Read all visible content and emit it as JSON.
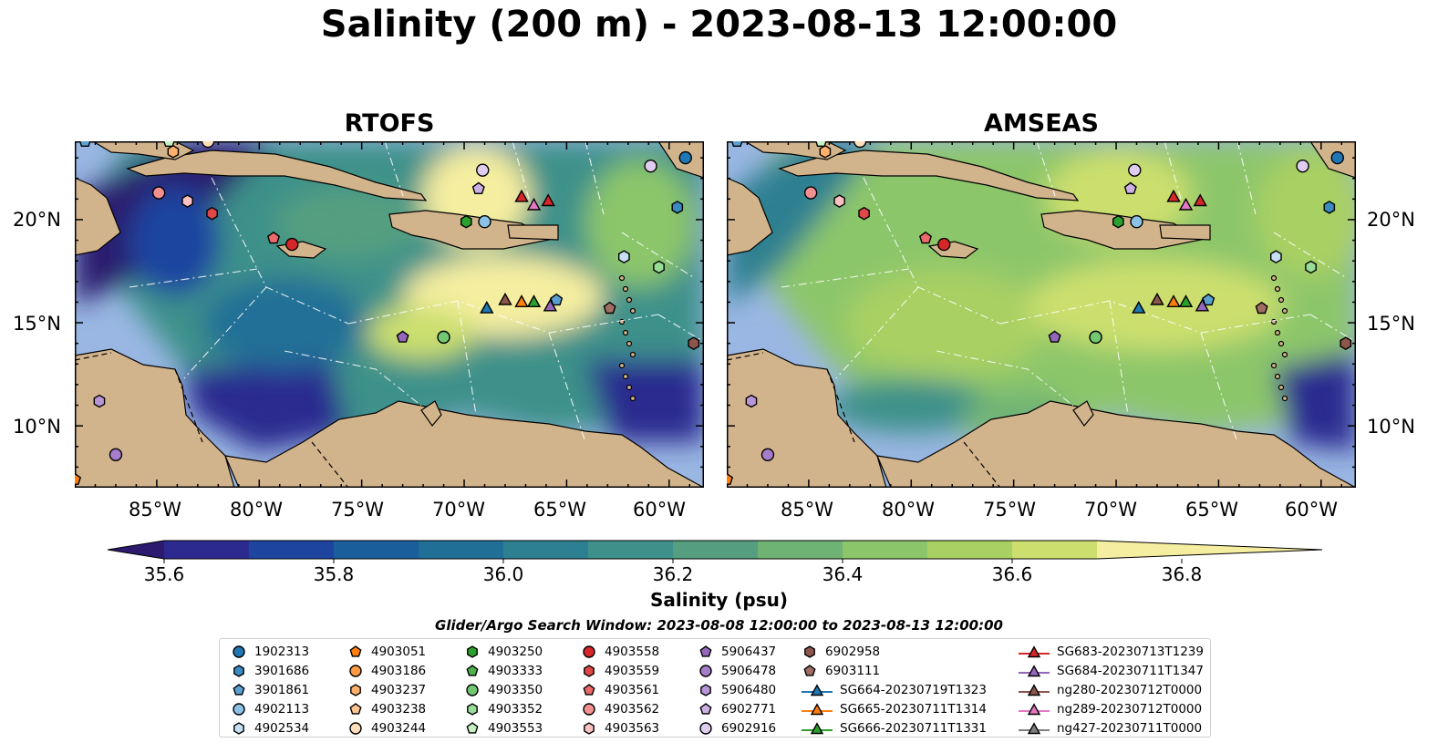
{
  "title": "Salinity (200 m) - 2023-08-13 12:00:00",
  "panels": [
    {
      "name": "RTOFS",
      "variant": "rtofs"
    },
    {
      "name": "AMSEAS",
      "variant": "amseas"
    }
  ],
  "lat_ticks": [
    "20°N",
    "15°N",
    "10°N"
  ],
  "lon_ticks": [
    "85°W",
    "80°W",
    "75°W",
    "70°W",
    "65°W",
    "60°W"
  ],
  "map_extent": {
    "lon_min": -89,
    "lon_max": -58.3,
    "lat_min": 7,
    "lat_max": 23.8
  },
  "colorbar": {
    "label": "Salinity (psu)",
    "ticks": [
      "35.6",
      "35.8",
      "36.0",
      "36.2",
      "36.4",
      "36.6",
      "36.8"
    ],
    "range": [
      35.5,
      36.9
    ],
    "step": 0.1,
    "colors": [
      "#2b1a6e",
      "#2c2a8f",
      "#1d45a0",
      "#1b5e9c",
      "#206f97",
      "#2d8091",
      "#3e918a",
      "#559f80",
      "#6fb374",
      "#8cc66a",
      "#a9d063",
      "#ccdf6e",
      "#f5eea0"
    ],
    "extend": "both"
  },
  "legend_title": "Glider/Argo Search Window: 2023-08-08 12:00:00 to 2023-08-13 12:00:00",
  "legend_columns": [
    [
      {
        "label": "1902313",
        "marker": "circle",
        "color": "#1f77b4"
      },
      {
        "label": "3901686",
        "marker": "hexagon",
        "color": "#3b8bc2"
      },
      {
        "label": "3901861",
        "marker": "pentagon",
        "color": "#5aa0d0"
      },
      {
        "label": "4902113",
        "marker": "circle",
        "color": "#8cc1e6"
      },
      {
        "label": "4902534",
        "marker": "hexagon",
        "color": "#c6e0f3"
      }
    ],
    [
      {
        "label": "4903051",
        "marker": "pentagon",
        "color": "#ff7f0e"
      },
      {
        "label": "4903186",
        "marker": "circle",
        "color": "#ff9a45"
      },
      {
        "label": "4903237",
        "marker": "hexagon",
        "color": "#ffb06a"
      },
      {
        "label": "4903238",
        "marker": "pentagon",
        "color": "#ffc690"
      },
      {
        "label": "4903244",
        "marker": "circle",
        "color": "#ffdfba"
      }
    ],
    [
      {
        "label": "4903250",
        "marker": "hexagon",
        "color": "#2ca02c"
      },
      {
        "label": "4903333",
        "marker": "pentagon",
        "color": "#4cb34c"
      },
      {
        "label": "4903350",
        "marker": "circle",
        "color": "#72c872"
      },
      {
        "label": "4903352",
        "marker": "hexagon",
        "color": "#98dc98"
      },
      {
        "label": "4903553",
        "marker": "pentagon",
        "color": "#c4f0c4"
      }
    ],
    [
      {
        "label": "4903558",
        "marker": "circle",
        "color": "#d62728"
      },
      {
        "label": "4903559",
        "marker": "hexagon",
        "color": "#e04848"
      },
      {
        "label": "4903561",
        "marker": "pentagon",
        "color": "#ea6a6a"
      },
      {
        "label": "4903562",
        "marker": "circle",
        "color": "#f39191"
      },
      {
        "label": "4903563",
        "marker": "hexagon",
        "color": "#fbc0c0"
      }
    ],
    [
      {
        "label": "5906437",
        "marker": "pentagon",
        "color": "#9467bd"
      },
      {
        "label": "5906478",
        "marker": "circle",
        "color": "#a57dca"
      },
      {
        "label": "5906480",
        "marker": "hexagon",
        "color": "#b795d6"
      },
      {
        "label": "6902771",
        "marker": "pentagon",
        "color": "#cab0e3"
      },
      {
        "label": "6902916",
        "marker": "circle",
        "color": "#dfcdf0"
      }
    ],
    [
      {
        "label": "6902958",
        "marker": "hexagon",
        "color": "#8c564b"
      },
      {
        "label": "6903111",
        "marker": "pentagon",
        "color": "#a06e63"
      },
      {
        "label": "SG664-20230719T1323",
        "marker": "triangle-line",
        "color": "#1f77b4"
      },
      {
        "label": "SG665-20230711T1314",
        "marker": "triangle-line",
        "color": "#ff7f0e"
      },
      {
        "label": "SG666-20230711T1331",
        "marker": "triangle-line",
        "color": "#2ca02c"
      }
    ],
    [
      {
        "label": "SG683-20230713T1239",
        "marker": "triangle-line",
        "color": "#d62728"
      },
      {
        "label": "SG684-20230711T1347",
        "marker": "triangle-line",
        "color": "#9467bd"
      },
      {
        "label": "ng280-20230712T0000",
        "marker": "triangle-line",
        "color": "#8c564b"
      },
      {
        "label": "ng289-20230712T0000",
        "marker": "triangle-line",
        "color": "#e377c2"
      },
      {
        "label": "ng427-20230711T0000",
        "marker": "triangle-line",
        "color": "#7f7f7f"
      }
    ]
  ],
  "markers": [
    {
      "label": "1902313",
      "lon": -59.2,
      "lat": 23.0
    },
    {
      "label": "3901686",
      "lon": -59.6,
      "lat": 20.6
    },
    {
      "label": "3901861",
      "lon": -88.5,
      "lat": 23.8
    },
    {
      "label": "4902113",
      "lon": -69.0,
      "lat": 19.9
    },
    {
      "label": "4902534",
      "lon": -62.2,
      "lat": 18.2
    },
    {
      "label": "4903051",
      "lon": -89.0,
      "lat": 7.4
    },
    {
      "label": "4903244",
      "lon": -82.5,
      "lat": 23.8
    },
    {
      "label": "4903237",
      "lon": -84.2,
      "lat": 23.3
    },
    {
      "label": "4903250",
      "lon": -69.9,
      "lat": 19.9
    },
    {
      "label": "4903350",
      "lon": -71.0,
      "lat": 14.3
    },
    {
      "label": "4903352",
      "lon": -60.5,
      "lat": 17.7
    },
    {
      "label": "4903553",
      "lon": -84.4,
      "lat": 23.8
    },
    {
      "label": "4903558",
      "lon": -78.4,
      "lat": 18.8
    },
    {
      "label": "4903559",
      "lon": -82.3,
      "lat": 20.3
    },
    {
      "label": "4903561",
      "lon": -79.3,
      "lat": 19.1
    },
    {
      "label": "4903562",
      "lon": -84.9,
      "lat": 21.3
    },
    {
      "label": "4903563",
      "lon": -83.5,
      "lat": 20.9
    },
    {
      "label": "5906437",
      "lon": -73.0,
      "lat": 14.3
    },
    {
      "label": "5906478",
      "lon": -87.0,
      "lat": 8.6
    },
    {
      "label": "5906480",
      "lon": -87.8,
      "lat": 11.2
    },
    {
      "label": "6902771",
      "lon": -69.3,
      "lat": 21.5
    },
    {
      "label": "6902916",
      "lon": -69.1,
      "lat": 22.4
    },
    {
      "label": "6902958",
      "lon": -58.8,
      "lat": 14.0
    },
    {
      "label": "6903111",
      "lon": -62.9,
      "lat": 15.7
    },
    {
      "label": "3901861",
      "lon": -65.5,
      "lat": 16.1
    },
    {
      "label": "6902916",
      "lon": -60.9,
      "lat": 22.6
    },
    {
      "label": "SG664-20230719T1323",
      "lon": -68.9,
      "lat": 15.7
    },
    {
      "label": "ng280-20230712T0000",
      "lon": -68.0,
      "lat": 16.1
    },
    {
      "label": "SG665-20230711T1314",
      "lon": -67.2,
      "lat": 16.0
    },
    {
      "label": "SG666-20230711T1331",
      "lon": -66.6,
      "lat": 16.0
    },
    {
      "label": "SG684-20230711T1347",
      "lon": -65.8,
      "lat": 15.8
    },
    {
      "label": "SG683-20230713T1239",
      "lon": -67.2,
      "lat": 21.1
    },
    {
      "label": "ng289-20230712T0000",
      "lon": -66.6,
      "lat": 20.7
    },
    {
      "label": "SG683-20230713T1239",
      "lon": -65.9,
      "lat": 20.9
    }
  ]
}
